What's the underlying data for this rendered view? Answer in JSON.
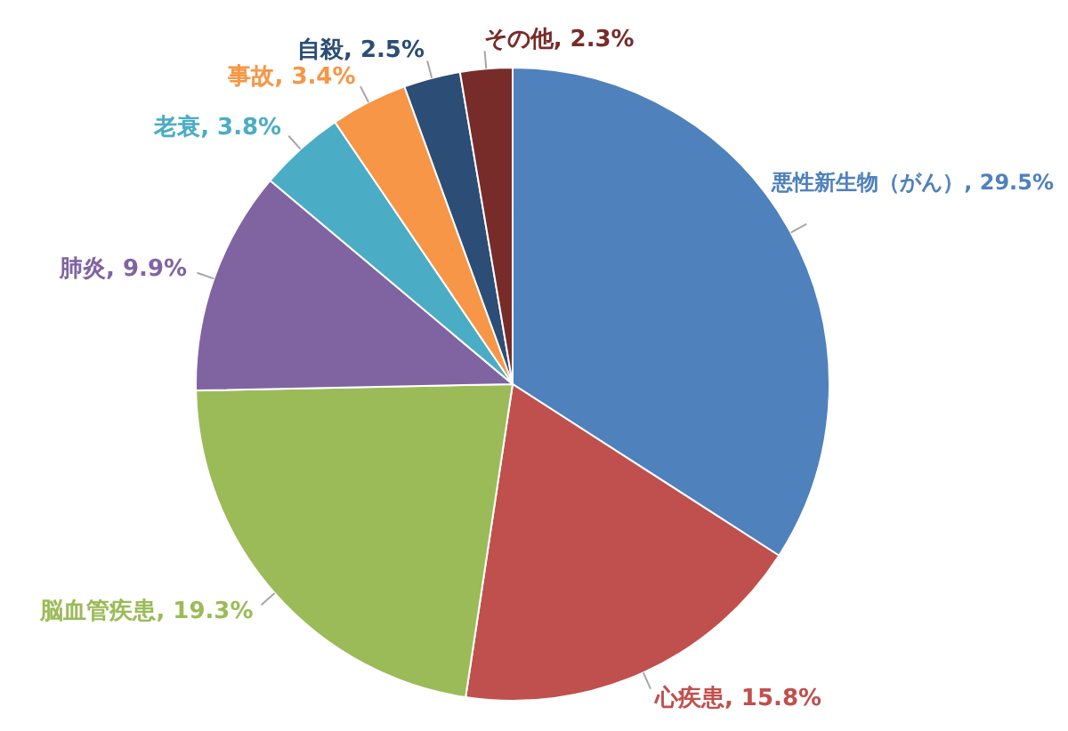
{
  "chart_data": {
    "type": "pie",
    "categories": [
      "悪性新生物（がん）",
      "心疾患",
      "脳血管疾患",
      "肺炎",
      "老衰",
      "事故",
      "自殺",
      "その他"
    ],
    "values": [
      29.5,
      15.8,
      19.3,
      9.9,
      3.8,
      3.4,
      2.5,
      2.3
    ],
    "value_labels": [
      "29.5%",
      "15.8%",
      "19.3%",
      "9.9%",
      "3.8%",
      "3.4%",
      "2.5%",
      "2.3%"
    ],
    "colors": [
      "#4f81bd",
      "#c0504d",
      "#9bbb59",
      "#8064a2",
      "#4bacc6",
      "#f79646",
      "#2c4d75",
      "#772c2a"
    ]
  }
}
